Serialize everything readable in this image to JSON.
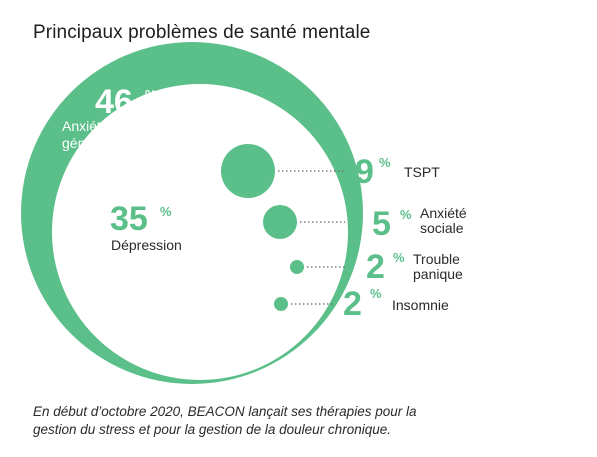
{
  "title": "Principaux problèmes de santé mentale",
  "accent_color": "#5bbf8a",
  "chart_data": {
    "type": "bubble",
    "title": "Principaux problèmes de santé mentale",
    "unit": "%",
    "series": [
      {
        "label_lines": [
          "Anxiété",
          "généralisée"
        ],
        "value": 46
      },
      {
        "label_lines": [
          "Dépression"
        ],
        "value": 35
      },
      {
        "label_lines": [
          "TSPT"
        ],
        "value": 9
      },
      {
        "label_lines": [
          "Anxiété",
          "sociale"
        ],
        "value": 5
      },
      {
        "label_lines": [
          "Trouble",
          "panique"
        ],
        "value": 2
      },
      {
        "label_lines": [
          "Insomnie"
        ],
        "value": 2
      }
    ]
  },
  "footnote": {
    "line1": "En début d’octobre 2020, BEACON lançait ses thérapies pour la",
    "line2": "gestion du stress et pour la gestion de la douleur chronique."
  }
}
